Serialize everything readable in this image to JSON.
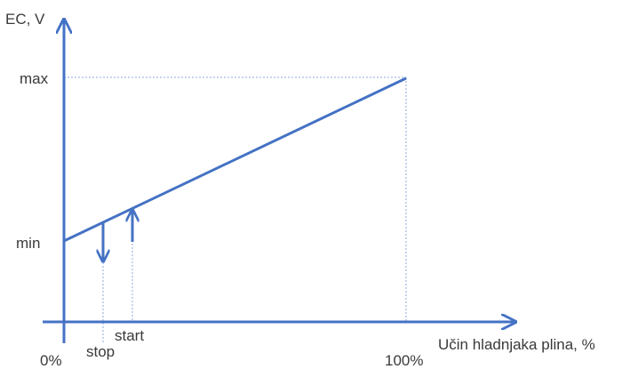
{
  "colors": {
    "line": "#4472c4",
    "guide": "#8eaadb",
    "text": "#3a3a3a"
  },
  "labels": {
    "y_axis": "EC, V",
    "x_axis": "Učin hladnjaka plina, %",
    "max": "max",
    "min": "min",
    "origin": "0%",
    "full": "100%",
    "stop": "stop",
    "start": "start"
  },
  "icons": {
    "stop_arrow": "arrow-down-icon",
    "start_arrow": "arrow-up-icon"
  }
}
